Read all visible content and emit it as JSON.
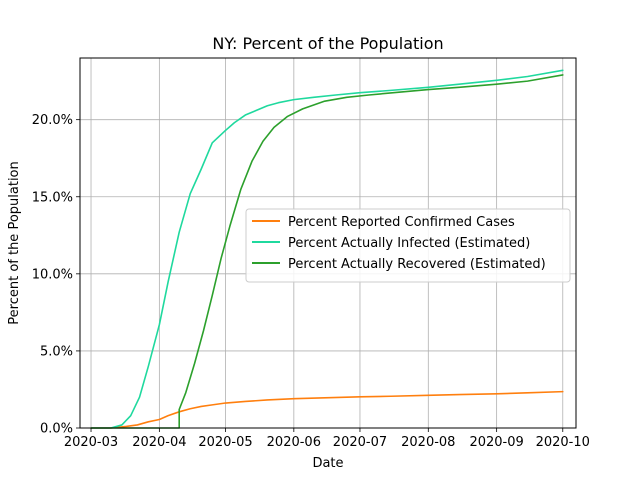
{
  "chart_data": {
    "type": "line",
    "title": "NY: Percent of the Population",
    "xlabel": "Date",
    "ylabel": "Percent of the Population",
    "x_ticks": [
      "2020-03",
      "2020-04",
      "2020-05",
      "2020-06",
      "2020-07",
      "2020-08",
      "2020-09",
      "2020-10"
    ],
    "y_ticks": [
      "0.0%",
      "5.0%",
      "10.0%",
      "15.0%",
      "20.0%"
    ],
    "ylim": [
      0,
      24
    ],
    "xlim": [
      "2020-02-25",
      "2020-10-07"
    ],
    "grid": true,
    "legend_position": "center-right",
    "series": [
      {
        "name": "Percent Reported Confirmed Cases",
        "color": "#ff7f0e",
        "points": [
          [
            "2020-03-01",
            0
          ],
          [
            "2020-03-10",
            0
          ],
          [
            "2020-03-17",
            0.1
          ],
          [
            "2020-03-22",
            0.2
          ],
          [
            "2020-03-27",
            0.4
          ],
          [
            "2020-04-01",
            0.55
          ],
          [
            "2020-04-05",
            0.8
          ],
          [
            "2020-04-10",
            1.05
          ],
          [
            "2020-04-15",
            1.25
          ],
          [
            "2020-04-20",
            1.4
          ],
          [
            "2020-04-25",
            1.5
          ],
          [
            "2020-05-01",
            1.62
          ],
          [
            "2020-05-10",
            1.72
          ],
          [
            "2020-05-20",
            1.82
          ],
          [
            "2020-06-01",
            1.9
          ],
          [
            "2020-06-15",
            1.96
          ],
          [
            "2020-07-01",
            2.02
          ],
          [
            "2020-07-15",
            2.06
          ],
          [
            "2020-08-01",
            2.12
          ],
          [
            "2020-08-15",
            2.17
          ],
          [
            "2020-09-01",
            2.22
          ],
          [
            "2020-09-15",
            2.28
          ],
          [
            "2020-10-01",
            2.36
          ]
        ]
      },
      {
        "name": "Percent Actually Infected (Estimated)",
        "color": "#1fd99e",
        "points": [
          [
            "2020-03-01",
            0
          ],
          [
            "2020-03-10",
            0
          ],
          [
            "2020-03-15",
            0.2
          ],
          [
            "2020-03-19",
            0.8
          ],
          [
            "2020-03-23",
            2.0
          ],
          [
            "2020-03-27",
            4.0
          ],
          [
            "2020-04-01",
            6.7
          ],
          [
            "2020-04-05",
            9.5
          ],
          [
            "2020-04-10",
            12.7
          ],
          [
            "2020-04-15",
            15.2
          ],
          [
            "2020-04-20",
            16.8
          ],
          [
            "2020-04-25",
            18.5
          ],
          [
            "2020-05-01",
            19.3
          ],
          [
            "2020-05-05",
            19.8
          ],
          [
            "2020-05-10",
            20.3
          ],
          [
            "2020-05-15",
            20.6
          ],
          [
            "2020-05-20",
            20.9
          ],
          [
            "2020-05-25",
            21.1
          ],
          [
            "2020-06-01",
            21.3
          ],
          [
            "2020-06-10",
            21.45
          ],
          [
            "2020-06-20",
            21.6
          ],
          [
            "2020-07-01",
            21.75
          ],
          [
            "2020-07-15",
            21.9
          ],
          [
            "2020-08-01",
            22.1
          ],
          [
            "2020-08-15",
            22.3
          ],
          [
            "2020-09-01",
            22.55
          ],
          [
            "2020-09-15",
            22.8
          ],
          [
            "2020-10-01",
            23.2
          ]
        ]
      },
      {
        "name": "Percent Actually Recovered (Estimated)",
        "color": "#2ca02c",
        "points": [
          [
            "2020-03-01",
            0
          ],
          [
            "2020-04-05",
            0
          ],
          [
            "2020-04-10",
            0
          ],
          [
            "2020-04-10",
            1.2
          ],
          [
            "2020-04-13",
            2.3
          ],
          [
            "2020-04-17",
            4.2
          ],
          [
            "2020-04-21",
            6.3
          ],
          [
            "2020-04-25",
            8.6
          ],
          [
            "2020-04-29",
            11.0
          ],
          [
            "2020-05-03",
            13.1
          ],
          [
            "2020-05-08",
            15.5
          ],
          [
            "2020-05-13",
            17.3
          ],
          [
            "2020-05-18",
            18.6
          ],
          [
            "2020-05-23",
            19.5
          ],
          [
            "2020-05-29",
            20.2
          ],
          [
            "2020-06-05",
            20.7
          ],
          [
            "2020-06-15",
            21.2
          ],
          [
            "2020-06-25",
            21.45
          ],
          [
            "2020-07-05",
            21.6
          ],
          [
            "2020-07-20",
            21.8
          ],
          [
            "2020-08-01",
            21.95
          ],
          [
            "2020-08-15",
            22.1
          ],
          [
            "2020-09-01",
            22.3
          ],
          [
            "2020-09-15",
            22.5
          ],
          [
            "2020-10-01",
            22.9
          ]
        ]
      }
    ]
  }
}
